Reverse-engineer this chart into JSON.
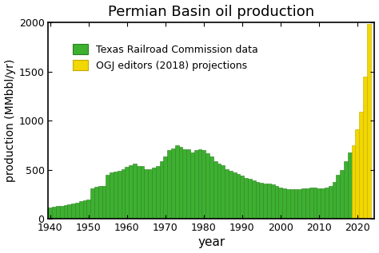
{
  "title": "Permian Basin oil production",
  "xlabel": "year",
  "ylabel": "production (MMbbl/yr)",
  "green_color": "#3db030",
  "green_edge": "#2a8020",
  "yellow_color": "#f0d800",
  "yellow_edge": "#c8a800",
  "background_color": "#ffffff",
  "ylim": [
    0,
    2000
  ],
  "xlim": [
    1939.5,
    2024.5
  ],
  "yticks": [
    0,
    500,
    1000,
    1500,
    2000
  ],
  "xticks": [
    1940,
    1950,
    1960,
    1970,
    1980,
    1990,
    2000,
    2010,
    2020
  ],
  "projection_start_year": 2019,
  "years": [
    1940,
    1941,
    1942,
    1943,
    1944,
    1945,
    1946,
    1947,
    1948,
    1949,
    1950,
    1951,
    1952,
    1953,
    1954,
    1955,
    1956,
    1957,
    1958,
    1959,
    1960,
    1961,
    1962,
    1963,
    1964,
    1965,
    1966,
    1967,
    1968,
    1969,
    1970,
    1971,
    1972,
    1973,
    1974,
    1975,
    1976,
    1977,
    1978,
    1979,
    1980,
    1981,
    1982,
    1983,
    1984,
    1985,
    1986,
    1987,
    1988,
    1989,
    1990,
    1991,
    1992,
    1993,
    1994,
    1995,
    1996,
    1997,
    1998,
    1999,
    2000,
    2001,
    2002,
    2003,
    2004,
    2005,
    2006,
    2007,
    2008,
    2009,
    2010,
    2011,
    2012,
    2013,
    2014,
    2015,
    2016,
    2017,
    2018,
    2019,
    2020,
    2021,
    2022,
    2023
  ],
  "values": [
    120,
    125,
    130,
    130,
    145,
    150,
    155,
    165,
    185,
    190,
    200,
    315,
    330,
    340,
    340,
    450,
    470,
    480,
    490,
    510,
    530,
    545,
    560,
    540,
    540,
    510,
    510,
    520,
    540,
    590,
    640,
    700,
    720,
    750,
    730,
    710,
    710,
    680,
    700,
    710,
    700,
    670,
    640,
    590,
    560,
    550,
    510,
    490,
    470,
    455,
    440,
    420,
    405,
    390,
    380,
    370,
    360,
    360,
    350,
    340,
    320,
    310,
    305,
    300,
    305,
    305,
    310,
    315,
    320,
    320,
    310,
    310,
    320,
    340,
    380,
    450,
    500,
    590,
    680,
    750,
    910,
    1090,
    1450,
    1980
  ],
  "legend_green": "Texas Railroad Commission data",
  "legend_yellow": "OGJ editors (2018) projections",
  "title_fontsize": 13,
  "label_fontsize": 11,
  "tick_fontsize": 9,
  "legend_fontsize": 9
}
